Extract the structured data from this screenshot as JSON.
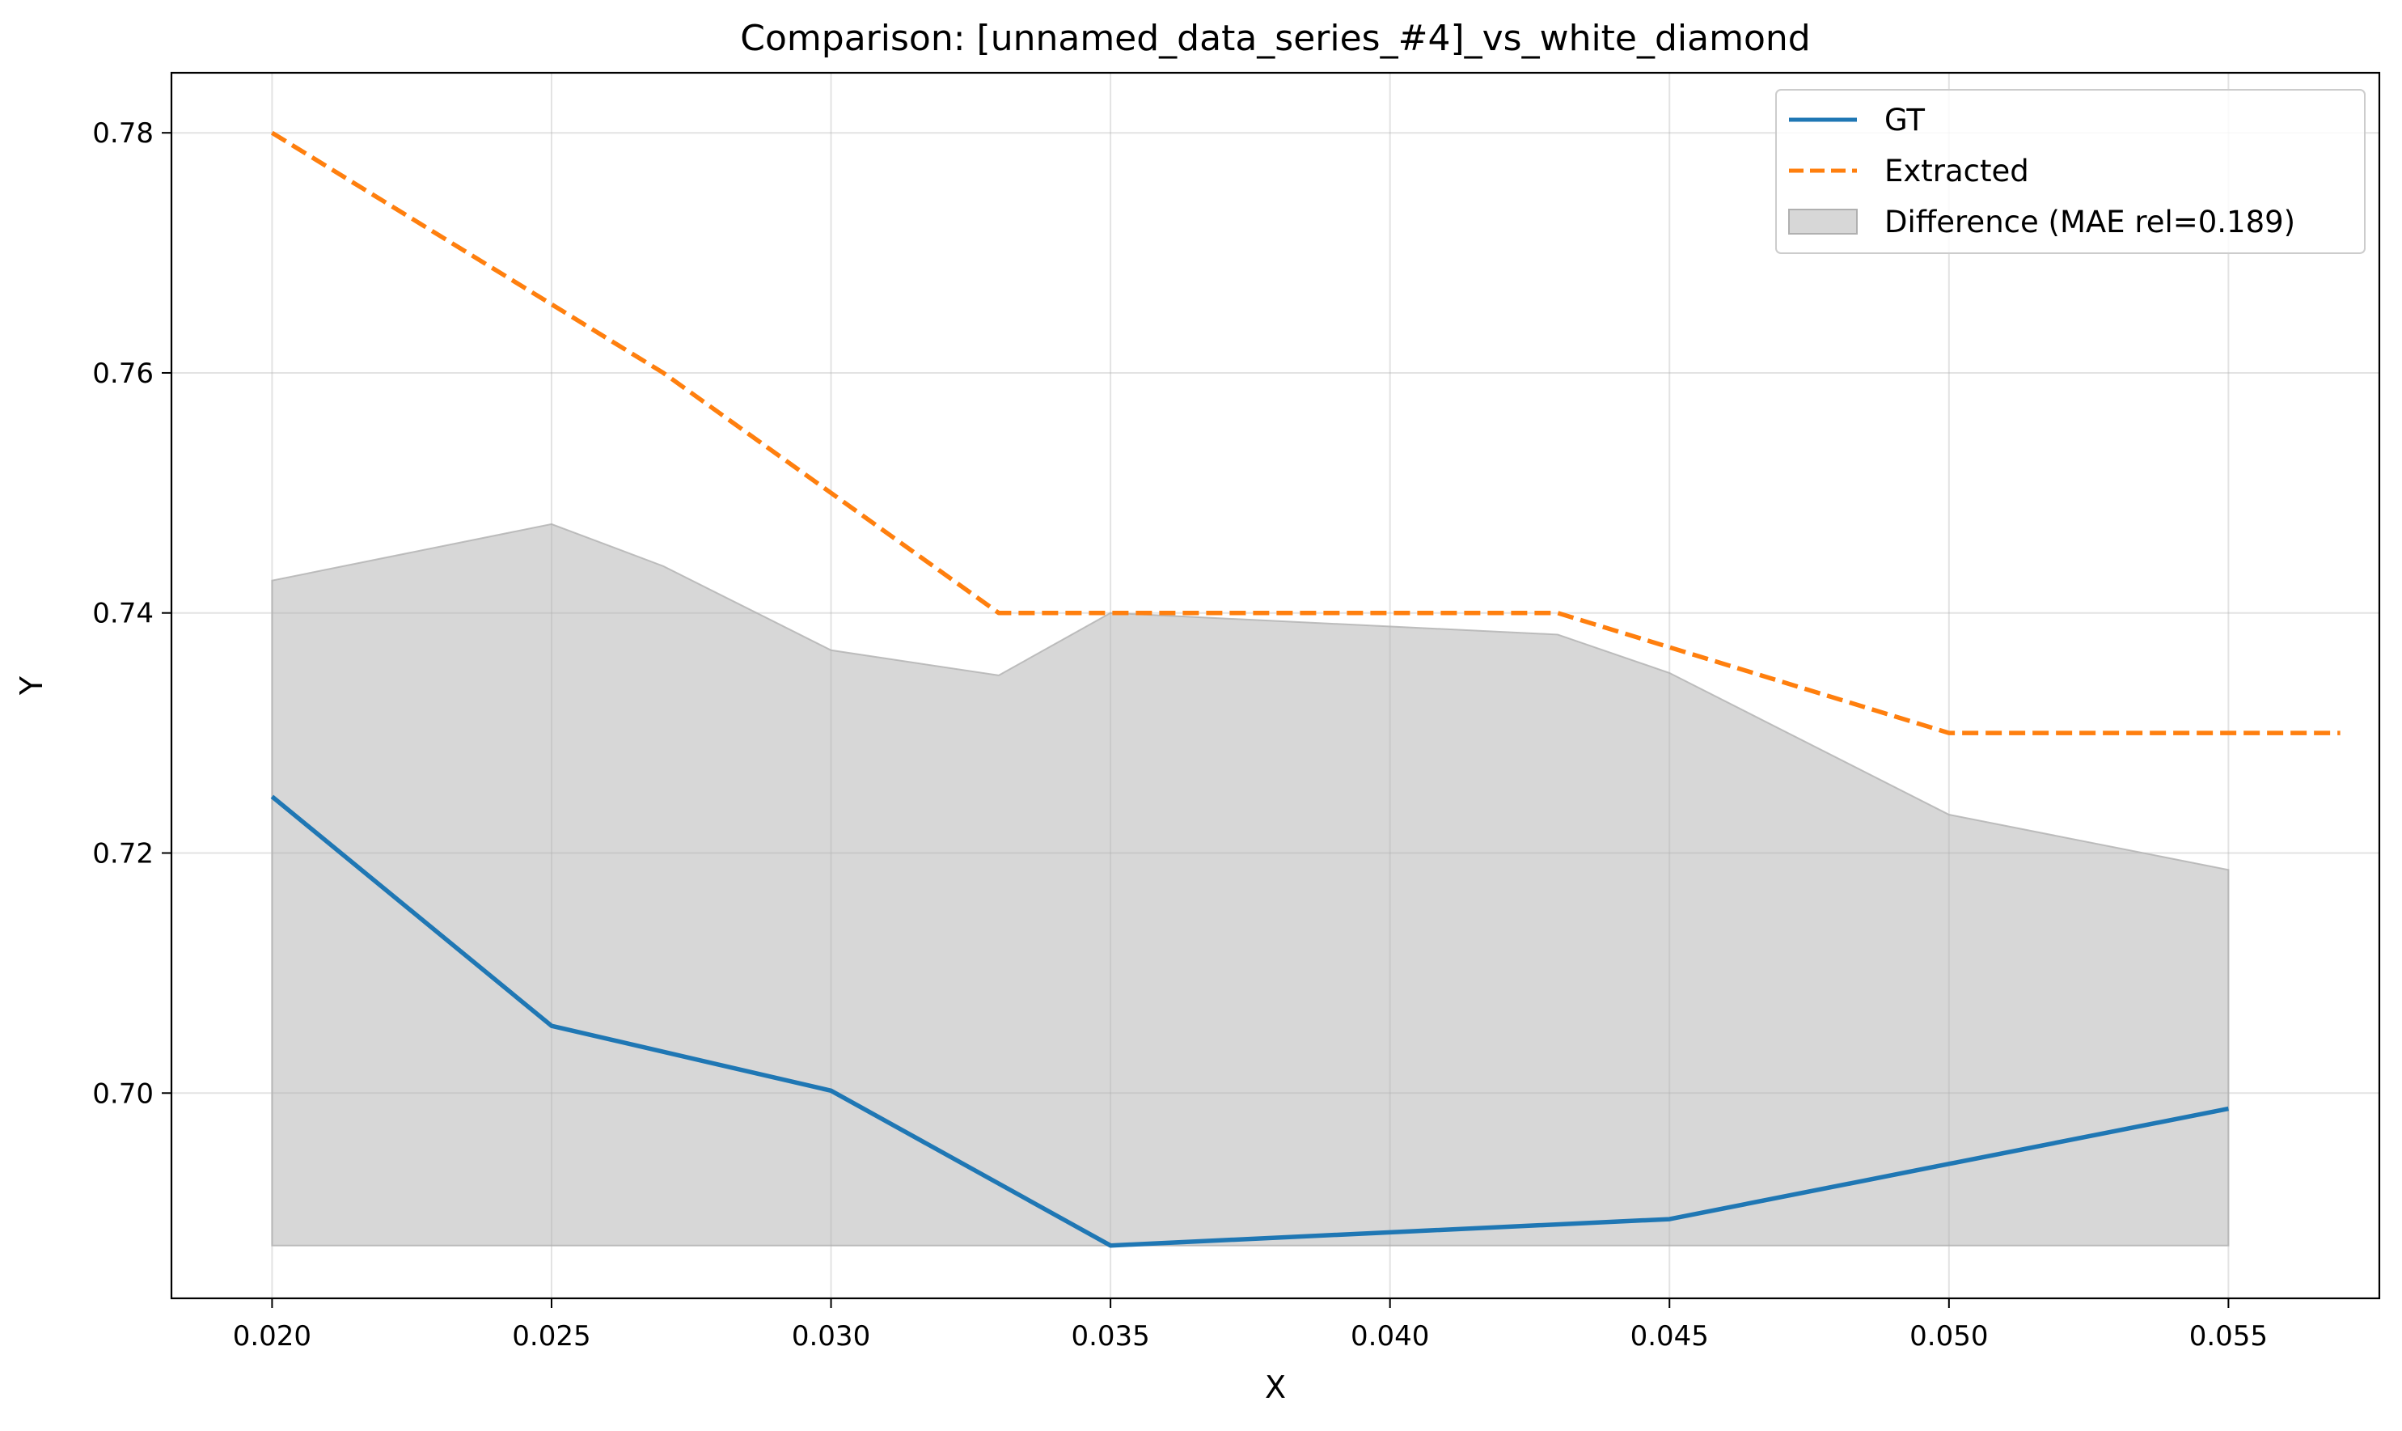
{
  "chart_data": {
    "type": "line",
    "title": "Comparison: [unnamed_data_series_#4]_vs_white_diamond",
    "xlabel": "X",
    "ylabel": "Y",
    "xlim": [
      0.0182,
      0.0577
    ],
    "ylim": [
      0.6829,
      0.785
    ],
    "grid": true,
    "legend_position": "top-right",
    "x_ticks": [
      "0.020",
      "0.025",
      "0.030",
      "0.035",
      "0.040",
      "0.045",
      "0.050",
      "0.055"
    ],
    "y_ticks": [
      "0.70",
      "0.72",
      "0.74",
      "0.76",
      "0.78"
    ],
    "series": [
      {
        "name": "GT",
        "color": "#1f77b4",
        "style": "solid",
        "x": [
          0.02,
          0.025,
          0.03,
          0.035,
          0.045,
          0.055
        ],
        "y": [
          0.7247,
          0.7056,
          0.7002,
          0.6873,
          0.6895,
          0.6987
        ]
      },
      {
        "name": "Extracted",
        "color": "#ff7f0e",
        "style": "dashed",
        "x": [
          0.02,
          0.027,
          0.033,
          0.043,
          0.05,
          0.057
        ],
        "y": [
          0.78,
          0.76,
          0.74,
          0.74,
          0.73,
          0.73
        ]
      }
    ],
    "difference_band": {
      "name": "Difference (MAE rel=0.189)",
      "color": "#b0b0b0",
      "baseline": 0.6873,
      "x": [
        0.02,
        0.025,
        0.027,
        0.03,
        0.033,
        0.035,
        0.043,
        0.045,
        0.05,
        0.055
      ],
      "y": [
        0.7427,
        0.7474,
        0.7439,
        0.7369,
        0.7348,
        0.74,
        0.7382,
        0.735,
        0.7232,
        0.7186
      ]
    }
  }
}
